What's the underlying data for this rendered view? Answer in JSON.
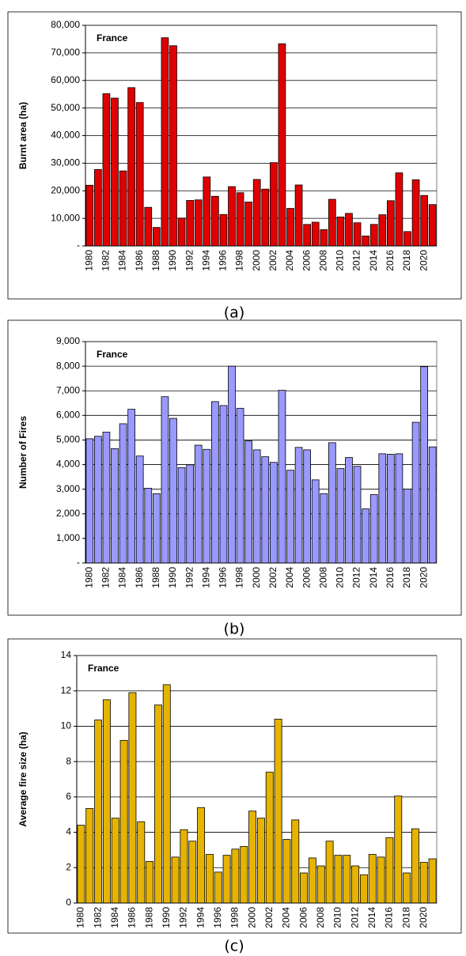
{
  "chart_data": [
    {
      "type": "bar",
      "annotation": "France",
      "caption": "(a)",
      "ylabel": "Burnt area (ha)",
      "color": "#e00000",
      "categories": [
        "1980",
        null,
        "1982",
        null,
        "1984",
        null,
        "1986",
        null,
        "1988",
        null,
        "1990",
        null,
        "1992",
        null,
        "1994",
        null,
        "1996",
        null,
        "1998",
        null,
        "2000",
        null,
        "2002",
        null,
        "2004",
        null,
        "2006",
        null,
        "2008",
        null,
        "2010",
        null,
        "2012",
        null,
        "2014",
        null,
        "2016",
        null,
        "2018",
        null,
        "2020",
        null
      ],
      "values": [
        22000,
        27700,
        55200,
        53600,
        27200,
        57400,
        52000,
        14000,
        6700,
        75500,
        72600,
        10100,
        16500,
        16700,
        25000,
        18000,
        11400,
        21500,
        19300,
        15900,
        24100,
        20600,
        30200,
        73300,
        13600,
        22100,
        7800,
        8600,
        5900,
        16900,
        10500,
        11800,
        8400,
        3600,
        7800,
        11300,
        16400,
        26500,
        5200,
        24000,
        18300,
        15000
      ],
      "ylim": [
        0,
        80000
      ],
      "yticks": [
        {
          "value": 0,
          "label": "-"
        },
        {
          "value": 10000,
          "label": "10,000"
        },
        {
          "value": 20000,
          "label": "20,000"
        },
        {
          "value": 30000,
          "label": "30,000"
        },
        {
          "value": 40000,
          "label": "40,000"
        },
        {
          "value": 50000,
          "label": "50,000"
        },
        {
          "value": 60000,
          "label": "60,000"
        },
        {
          "value": 70000,
          "label": "70,000"
        },
        {
          "value": 80000,
          "label": "80,000"
        }
      ],
      "grid": true
    },
    {
      "type": "bar",
      "annotation": "France",
      "caption": "(b)",
      "ylabel": "Number of Fires",
      "color": "#9999ff",
      "categories": [
        "1980",
        null,
        "1982",
        null,
        "1984",
        null,
        "1986",
        null,
        "1988",
        null,
        "1990",
        null,
        "1992",
        null,
        "1994",
        null,
        "1996",
        null,
        "1998",
        null,
        "2000",
        null,
        "2002",
        null,
        "2004",
        null,
        "2006",
        null,
        "2008",
        null,
        "2010",
        null,
        "2012",
        null,
        "2014",
        null,
        "2016",
        null,
        "2018",
        null,
        "2020",
        null
      ],
      "values": [
        5050,
        5150,
        5320,
        4650,
        5660,
        6250,
        4350,
        3040,
        2820,
        6760,
        5880,
        3880,
        3990,
        4790,
        4620,
        6560,
        6400,
        8000,
        6290,
        4960,
        4600,
        4320,
        4090,
        7020,
        3770,
        4700,
        4600,
        3380,
        2820,
        4890,
        3840,
        4290,
        3930,
        2200,
        2780,
        4440,
        4420,
        4440,
        3010,
        5720,
        7980,
        4720
      ],
      "ylim": [
        0,
        9000
      ],
      "yticks": [
        {
          "value": 0,
          "label": "-"
        },
        {
          "value": 1000,
          "label": "1,000"
        },
        {
          "value": 2000,
          "label": "2,000"
        },
        {
          "value": 3000,
          "label": "3,000"
        },
        {
          "value": 4000,
          "label": "4,000"
        },
        {
          "value": 5000,
          "label": "5,000"
        },
        {
          "value": 6000,
          "label": "6,000"
        },
        {
          "value": 7000,
          "label": "7,000"
        },
        {
          "value": 8000,
          "label": "8,000"
        },
        {
          "value": 9000,
          "label": "9,000"
        }
      ],
      "grid": true
    },
    {
      "type": "bar",
      "annotation": "France",
      "caption": "(c)",
      "ylabel": "Average fire size (ha)",
      "color": "#e6b400",
      "categories": [
        "1980",
        null,
        "1982",
        null,
        "1984",
        null,
        "1986",
        null,
        "1988",
        null,
        "1990",
        null,
        "1992",
        null,
        "1994",
        null,
        "1996",
        null,
        "1998",
        null,
        "2000",
        null,
        "2002",
        null,
        "2004",
        null,
        "2006",
        null,
        "2008",
        null,
        "2010",
        null,
        "2012",
        null,
        "2014",
        null,
        "2016",
        null,
        "2018",
        null,
        "2020",
        null
      ],
      "values": [
        4.4,
        5.35,
        10.35,
        11.5,
        4.8,
        9.2,
        11.9,
        4.6,
        2.35,
        11.2,
        12.35,
        2.6,
        4.15,
        3.5,
        5.4,
        2.75,
        1.75,
        2.7,
        3.05,
        3.2,
        5.2,
        4.8,
        7.4,
        10.4,
        3.6,
        4.7,
        1.7,
        2.55,
        2.1,
        3.5,
        2.7,
        2.7,
        2.1,
        1.6,
        2.75,
        2.6,
        3.7,
        6.05,
        1.7,
        4.2,
        2.3,
        2.5
      ],
      "ylim": [
        0,
        14
      ],
      "yticks": [
        0,
        2,
        4,
        6,
        8,
        10,
        12,
        14
      ],
      "grid": true
    }
  ]
}
